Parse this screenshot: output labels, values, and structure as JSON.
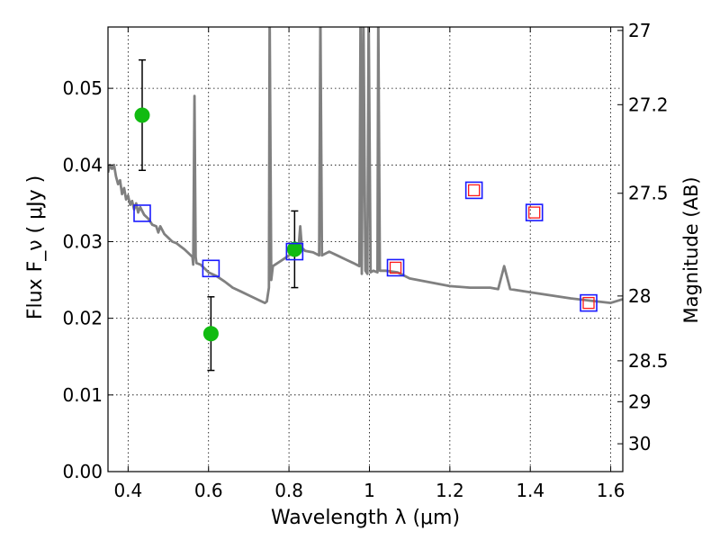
{
  "chart_data": {
    "type": "scatter",
    "xlabel": "Wavelength  λ (μm)",
    "ylabel_left": "Flux  F_ν  ( μJy )",
    "ylabel_right": "Magnitude (AB)",
    "xlim": [
      0.35,
      1.63
    ],
    "ylim": [
      0.0,
      0.058
    ],
    "grid": true,
    "x_ticks": [
      {
        "value": 0.4,
        "label": "0.4"
      },
      {
        "value": 0.6,
        "label": "0.6"
      },
      {
        "value": 0.8,
        "label": "0.8"
      },
      {
        "value": 1.0,
        "label": "1"
      },
      {
        "value": 1.2,
        "label": "1.2"
      },
      {
        "value": 1.4,
        "label": "1.4"
      },
      {
        "value": 1.6,
        "label": "1.6"
      }
    ],
    "y_ticks": [
      {
        "value": 0.0,
        "label": "0.00"
      },
      {
        "value": 0.01,
        "label": "0.01"
      },
      {
        "value": 0.02,
        "label": "0.02"
      },
      {
        "value": 0.03,
        "label": "0.03"
      },
      {
        "value": 0.04,
        "label": "0.04"
      },
      {
        "value": 0.05,
        "label": "0.05"
      }
    ],
    "mag_ticks": [
      {
        "value": 27,
        "label": "27"
      },
      {
        "value": 27.2,
        "label": "27.2"
      },
      {
        "value": 27.5,
        "label": "27.5"
      },
      {
        "value": 28,
        "label": "28"
      },
      {
        "value": 28.5,
        "label": "28.5"
      },
      {
        "value": 29,
        "label": "29"
      },
      {
        "value": 30,
        "label": "30"
      }
    ],
    "series": [
      {
        "kind": "line",
        "color": "#808080",
        "points": [
          [
            0.35,
            0.039
          ],
          [
            0.355,
            0.04
          ],
          [
            0.36,
            0.0395
          ],
          [
            0.365,
            0.04
          ],
          [
            0.37,
            0.0385
          ],
          [
            0.375,
            0.0375
          ],
          [
            0.38,
            0.038
          ],
          [
            0.385,
            0.0362
          ],
          [
            0.39,
            0.037
          ],
          [
            0.395,
            0.0355
          ],
          [
            0.4,
            0.036
          ],
          [
            0.405,
            0.0348
          ],
          [
            0.41,
            0.0353
          ],
          [
            0.415,
            0.0342
          ],
          [
            0.42,
            0.035
          ],
          [
            0.425,
            0.0338
          ],
          [
            0.43,
            0.0345
          ],
          [
            0.44,
            0.0335
          ],
          [
            0.45,
            0.033
          ],
          [
            0.46,
            0.0322
          ],
          [
            0.47,
            0.032
          ],
          [
            0.475,
            0.0312
          ],
          [
            0.48,
            0.032
          ],
          [
            0.49,
            0.031
          ],
          [
            0.5,
            0.0305
          ],
          [
            0.51,
            0.03
          ],
          [
            0.52,
            0.0298
          ],
          [
            0.53,
            0.0294
          ],
          [
            0.54,
            0.029
          ],
          [
            0.55,
            0.0285
          ],
          [
            0.56,
            0.028
          ],
          [
            0.562,
            0.027
          ],
          [
            0.565,
            0.049
          ],
          [
            0.568,
            0.028
          ],
          [
            0.57,
            0.0272
          ],
          [
            0.58,
            0.027
          ],
          [
            0.59,
            0.0265
          ],
          [
            0.6,
            0.026
          ],
          [
            0.62,
            0.0255
          ],
          [
            0.64,
            0.0248
          ],
          [
            0.66,
            0.024
          ],
          [
            0.68,
            0.0235
          ],
          [
            0.7,
            0.023
          ],
          [
            0.72,
            0.0225
          ],
          [
            0.74,
            0.022
          ],
          [
            0.745,
            0.0222
          ],
          [
            0.75,
            0.024
          ],
          [
            0.752,
            0.06
          ],
          [
            0.756,
            0.025
          ],
          [
            0.76,
            0.0268
          ],
          [
            0.78,
            0.0275
          ],
          [
            0.8,
            0.0282
          ],
          [
            0.82,
            0.0288
          ],
          [
            0.825,
            0.03
          ],
          [
            0.828,
            0.032
          ],
          [
            0.832,
            0.0292
          ],
          [
            0.84,
            0.0288
          ],
          [
            0.86,
            0.0286
          ],
          [
            0.875,
            0.0282
          ],
          [
            0.878,
            0.06
          ],
          [
            0.882,
            0.0282
          ],
          [
            0.9,
            0.0287
          ],
          [
            0.92,
            0.0282
          ],
          [
            0.94,
            0.0277
          ],
          [
            0.96,
            0.0272
          ],
          [
            0.975,
            0.0268
          ],
          [
            0.978,
            0.06
          ],
          [
            0.981,
            0.0258
          ],
          [
            0.985,
            0.06
          ],
          [
            0.99,
            0.0262
          ],
          [
            0.995,
            0.0258
          ],
          [
            0.998,
            0.06
          ],
          [
            1.003,
            0.026
          ],
          [
            1.01,
            0.0262
          ],
          [
            1.02,
            0.026
          ],
          [
            1.022,
            0.06
          ],
          [
            1.026,
            0.0262
          ],
          [
            1.04,
            0.0262
          ],
          [
            1.07,
            0.026
          ],
          [
            1.1,
            0.0252
          ],
          [
            1.15,
            0.0247
          ],
          [
            1.2,
            0.0242
          ],
          [
            1.25,
            0.024
          ],
          [
            1.3,
            0.024
          ],
          [
            1.32,
            0.0238
          ],
          [
            1.335,
            0.0268
          ],
          [
            1.35,
            0.0238
          ],
          [
            1.4,
            0.0234
          ],
          [
            1.45,
            0.023
          ],
          [
            1.5,
            0.0226
          ],
          [
            1.55,
            0.0223
          ],
          [
            1.6,
            0.022
          ],
          [
            1.63,
            0.0225
          ]
        ]
      },
      {
        "kind": "points-with-errors",
        "color": "#11bb11",
        "points": [
          {
            "x": 0.435,
            "y": 0.0465,
            "err": 0.0072
          },
          {
            "x": 0.606,
            "y": 0.018,
            "err": 0.0048
          },
          {
            "x": 0.814,
            "y": 0.029,
            "err": 0.005
          }
        ]
      },
      {
        "kind": "open-squares",
        "color": "#1a1aff",
        "points": [
          {
            "x": 0.435,
            "y": 0.0337
          },
          {
            "x": 0.606,
            "y": 0.0265
          },
          {
            "x": 0.814,
            "y": 0.0287
          },
          {
            "x": 1.065,
            "y": 0.0266
          },
          {
            "x": 1.26,
            "y": 0.0367
          },
          {
            "x": 1.41,
            "y": 0.0338
          },
          {
            "x": 1.545,
            "y": 0.022
          }
        ]
      },
      {
        "kind": "small-open-squares",
        "color": "#ff1a1a",
        "points": [
          {
            "x": 1.065,
            "y": 0.0266
          },
          {
            "x": 1.26,
            "y": 0.0367
          },
          {
            "x": 1.41,
            "y": 0.0338
          },
          {
            "x": 1.545,
            "y": 0.022
          }
        ]
      }
    ]
  }
}
